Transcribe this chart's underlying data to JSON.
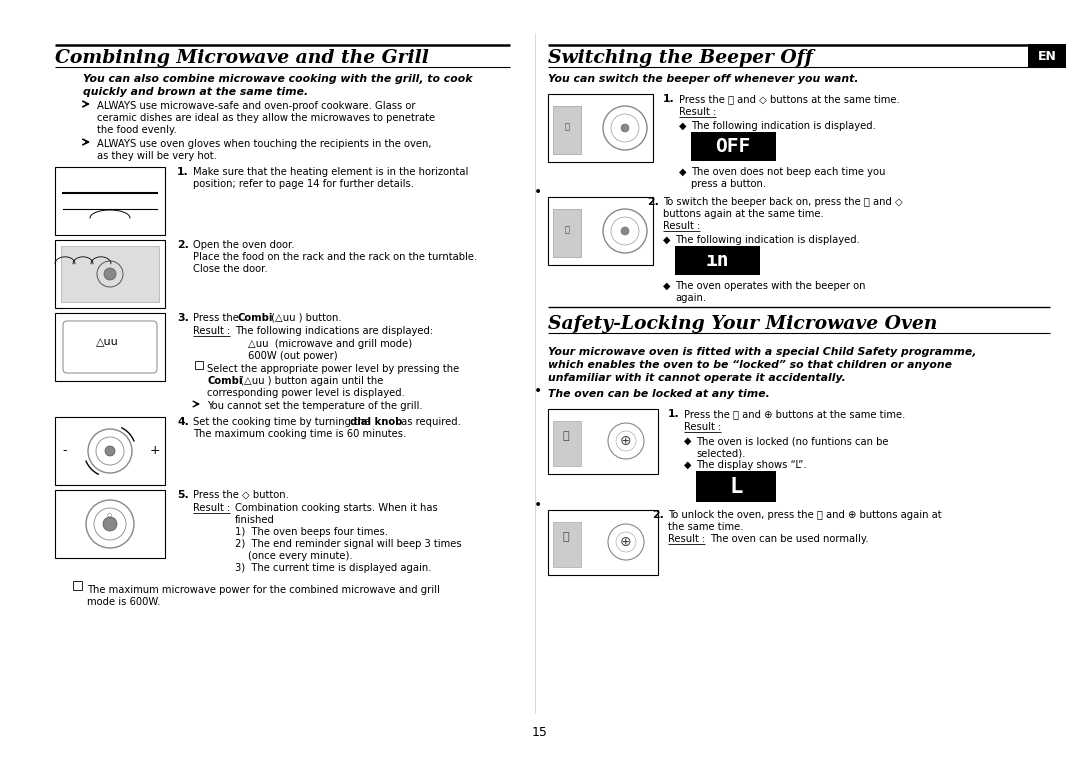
{
  "bg_color": "#ffffff",
  "page_num": "15",
  "left_title": "Combining Microwave and the Grill",
  "left_intro": "You can also combine microwave cooking with the grill, to cook quickly and brown at the same time.",
  "right_title1": "Switching the Beeper Off",
  "right_intro1": "You can switch the beeper off whenever you want.",
  "right_title2": "Safety-Locking Your Microwave Oven",
  "right_intro2a": "Your microwave oven is fitted with a special Child Safety programme,",
  "right_intro2b": "which enables the oven to be “locked” so that children or anyone",
  "right_intro2c": "unfamiliar with it cannot operate it accidentally.",
  "right_intro2d": "The oven can be locked at any time.",
  "en_label": "EN"
}
